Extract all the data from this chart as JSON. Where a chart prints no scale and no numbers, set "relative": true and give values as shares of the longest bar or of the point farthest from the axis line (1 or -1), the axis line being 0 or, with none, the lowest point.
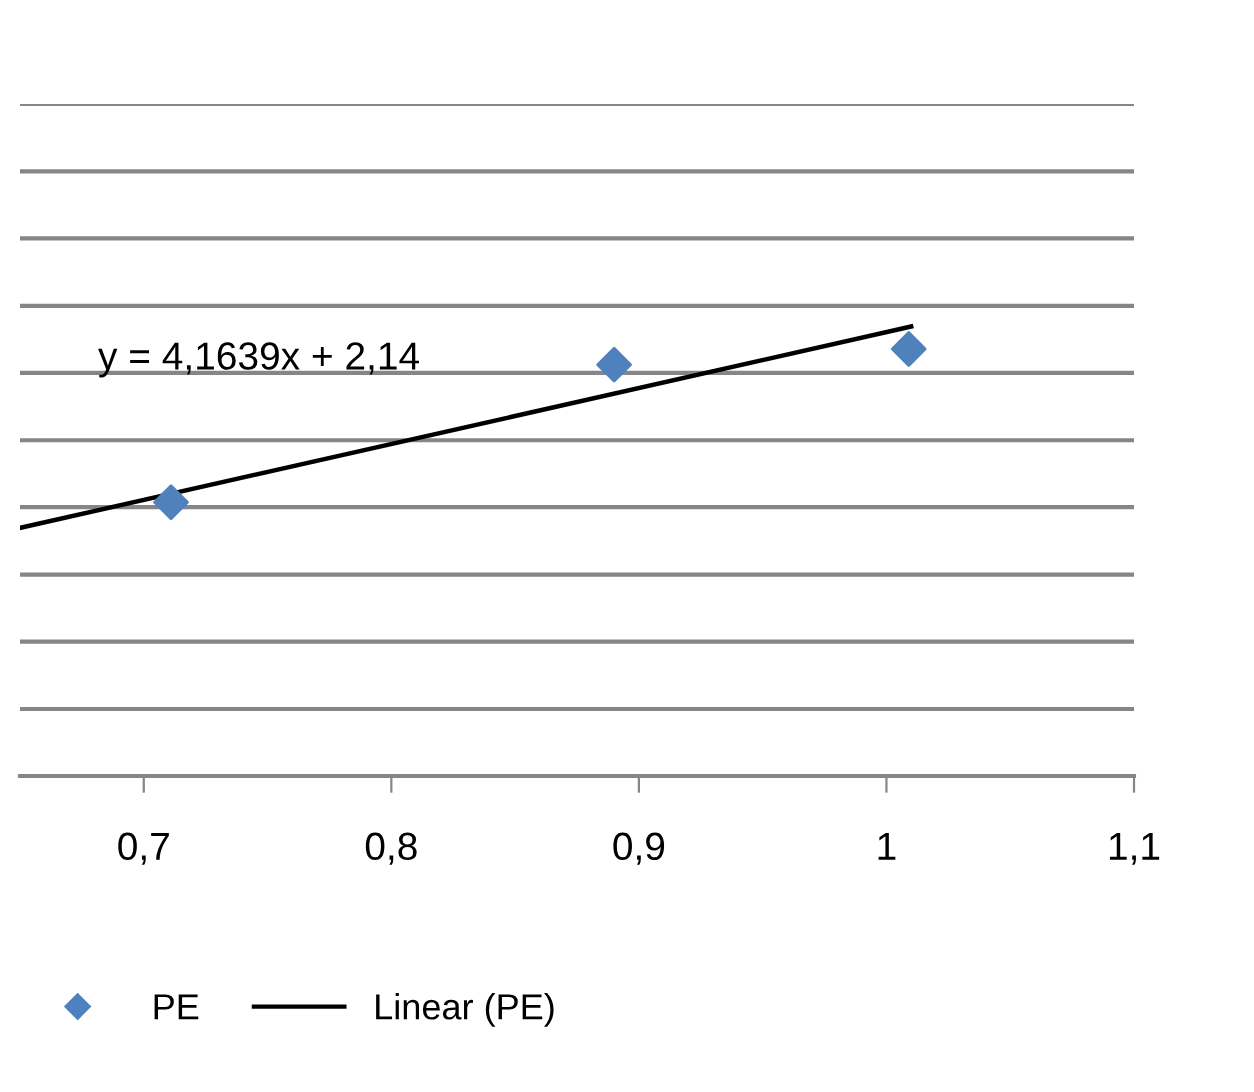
{
  "chart_data": {
    "type": "scatter",
    "relative": true,
    "xlim": [
      0.65,
      1.1
    ],
    "xticks": [
      {
        "value": 0.7,
        "label": "0,7"
      },
      {
        "value": 0.8,
        "label": "0,8"
      },
      {
        "value": 0.9,
        "label": "0,9"
      },
      {
        "value": 1.0,
        "label": "1"
      },
      {
        "value": 1.1,
        "label": "1,1"
      }
    ],
    "series": [
      {
        "name": "PE",
        "color": "#4f81bd",
        "marker": "diamond",
        "x": [
          0.711,
          0.89,
          1.009
        ],
        "values": [
          0.609,
          0.915,
          0.95
        ]
      },
      {
        "name": "Linear (PE)",
        "type": "line",
        "color": "#000000",
        "line_style": "solid",
        "marker": "none",
        "x": [
          0.65,
          1.01
        ],
        "values": [
          0.552,
          1.0
        ]
      }
    ],
    "ref_lines": [
      {
        "axis": "y",
        "value": 0.149,
        "color": "#868686"
      },
      {
        "axis": "y",
        "value": 0.299,
        "color": "#868686"
      },
      {
        "axis": "y",
        "value": 0.448,
        "color": "#868686"
      },
      {
        "axis": "y",
        "value": 0.598,
        "color": "#868686"
      },
      {
        "axis": "y",
        "value": 0.747,
        "color": "#868686"
      },
      {
        "axis": "y",
        "value": 0.897,
        "color": "#868686"
      },
      {
        "axis": "y",
        "value": 1.046,
        "color": "#868686"
      },
      {
        "axis": "y",
        "value": 1.196,
        "color": "#868686"
      },
      {
        "axis": "y",
        "value": 1.345,
        "color": "#868686"
      },
      {
        "axis": "y",
        "value": 1.495,
        "color": "#868686"
      }
    ],
    "annotations": [
      "y = 4,1639x + 2,14"
    ],
    "legend": "bottom left"
  }
}
